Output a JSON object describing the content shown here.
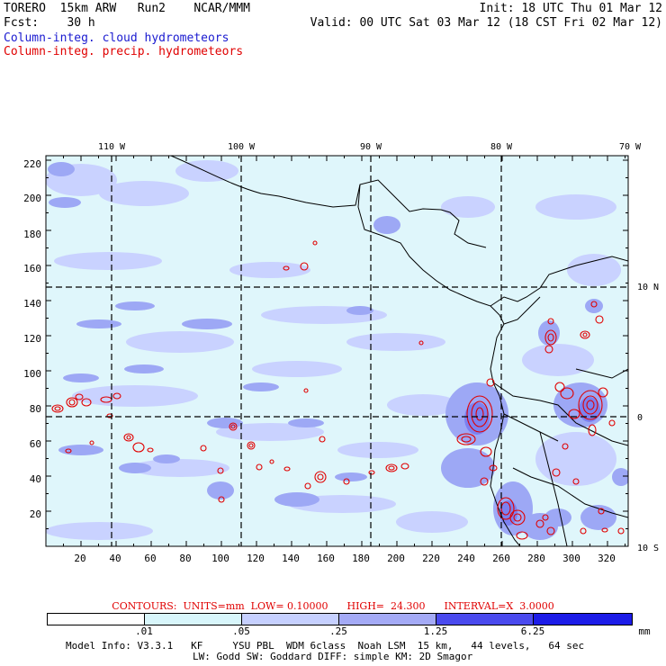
{
  "header": {
    "model_line": "TORERO  15km ARW   Run2    NCAR/MMM",
    "fcst_line": "Fcst:    30 h",
    "init_line": "Init: 18 UTC Thu 01 Mar 12",
    "valid_line": "Valid: 00 UTC Sat 03 Mar 12 (18 CST Fri 02 Mar 12)",
    "field_cloud": "Column-integ. cloud hydrometeors",
    "field_precip": "Column-integ. precip. hydrometeors"
  },
  "map": {
    "lon_labels": [
      "110 W",
      "100 W",
      "90 W",
      "80 W",
      "70 W"
    ],
    "lat_labels": [
      "10 N",
      "0",
      "10 S"
    ],
    "y_ticks": [
      "220",
      "200",
      "180",
      "160",
      "140",
      "120",
      "100",
      "80",
      "60",
      "40",
      "20"
    ],
    "x_ticks": [
      "20",
      "40",
      "60",
      "80",
      "100",
      "120",
      "140",
      "160",
      "180",
      "200",
      "220",
      "240",
      "260",
      "280",
      "300",
      "320"
    ],
    "colors": {
      "ocean": "#dff6fb",
      "cloud_light": "#c9d2ff",
      "cloud_medium": "#9da8f5",
      "precip_contour": "#e00000"
    }
  },
  "contours_line": "CONTOURS:  UNITS=mm  LOW= 0.10000      HIGH=  24.300      INTERVAL=X  3.0000",
  "colorbar": {
    "labels": [
      ".01",
      ".05",
      ".25",
      "1.25",
      "6.25"
    ],
    "unit": "mm",
    "colors": [
      "#ffffff",
      "#d8f6fb",
      "#c6d0ff",
      "#a4aaf6",
      "#7c80f0",
      "#4a4aee",
      "#1c1ce8"
    ]
  },
  "footer": {
    "line1": "Model Info: V3.3.1   KF     YSU PBL  WDM 6class  Noah LSM  15 km,   44 levels,   64 sec",
    "line2": "LW: Godd SW: Goddard DIFF: simple KM: 2D Smagor"
  }
}
